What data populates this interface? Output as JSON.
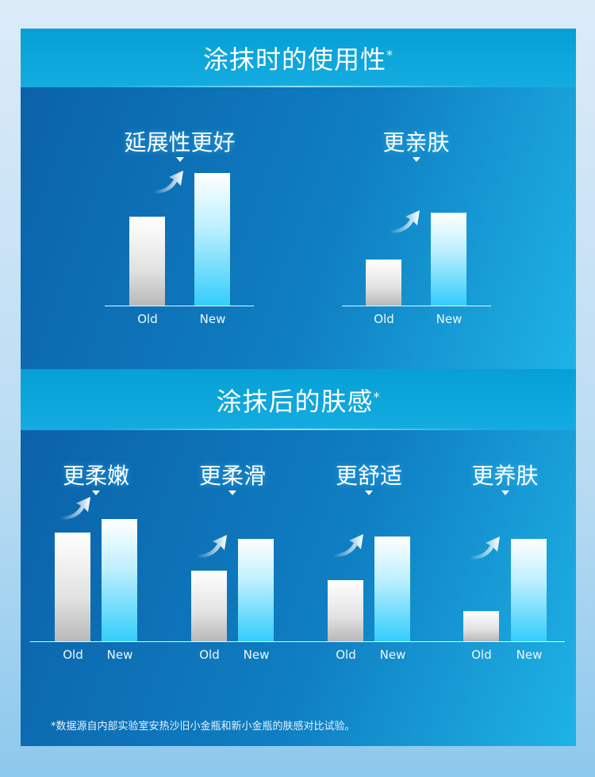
{
  "sections": [
    {
      "title": "涂抹时的使用性",
      "mark": "*"
    },
    {
      "title": "涂抹后的肤感",
      "mark": "*"
    }
  ],
  "chart_data": [
    {
      "type": "bar",
      "title": "延展性更好",
      "categories": [
        "Old",
        "New"
      ],
      "values": [
        112,
        167
      ],
      "ylim": [
        0,
        180
      ],
      "grid": false
    },
    {
      "type": "bar",
      "title": "更亲肤",
      "categories": [
        "Old",
        "New"
      ],
      "values": [
        58,
        117
      ],
      "ylim": [
        0,
        180
      ],
      "grid": false
    },
    {
      "type": "bar",
      "title": "更柔嫩",
      "categories": [
        "Old",
        "New"
      ],
      "values": [
        137,
        154
      ],
      "ylim": [
        0,
        180
      ],
      "grid": false
    },
    {
      "type": "bar",
      "title": "更柔滑",
      "categories": [
        "Old",
        "New"
      ],
      "values": [
        89,
        129
      ],
      "ylim": [
        0,
        180
      ],
      "grid": false
    },
    {
      "type": "bar",
      "title": "更舒适",
      "categories": [
        "Old",
        "New"
      ],
      "values": [
        77,
        132
      ],
      "ylim": [
        0,
        180
      ],
      "grid": false
    },
    {
      "type": "bar",
      "title": "更养肤",
      "categories": [
        "Old",
        "New"
      ],
      "values": [
        38,
        129
      ],
      "ylim": [
        0,
        180
      ],
      "grid": false
    }
  ],
  "colors": {
    "header": "#06a0d5",
    "panel": "#0b62a9",
    "new_bar": "#33cdfb",
    "old_bar": "#b8b8b8"
  },
  "icons": {
    "trend": "curved-up-arrow-icon",
    "pointer": "triangle-down-icon"
  },
  "footnote": "*数据源自内部实验室安热沙旧小金瓶和新小金瓶的肤感对比试验。"
}
